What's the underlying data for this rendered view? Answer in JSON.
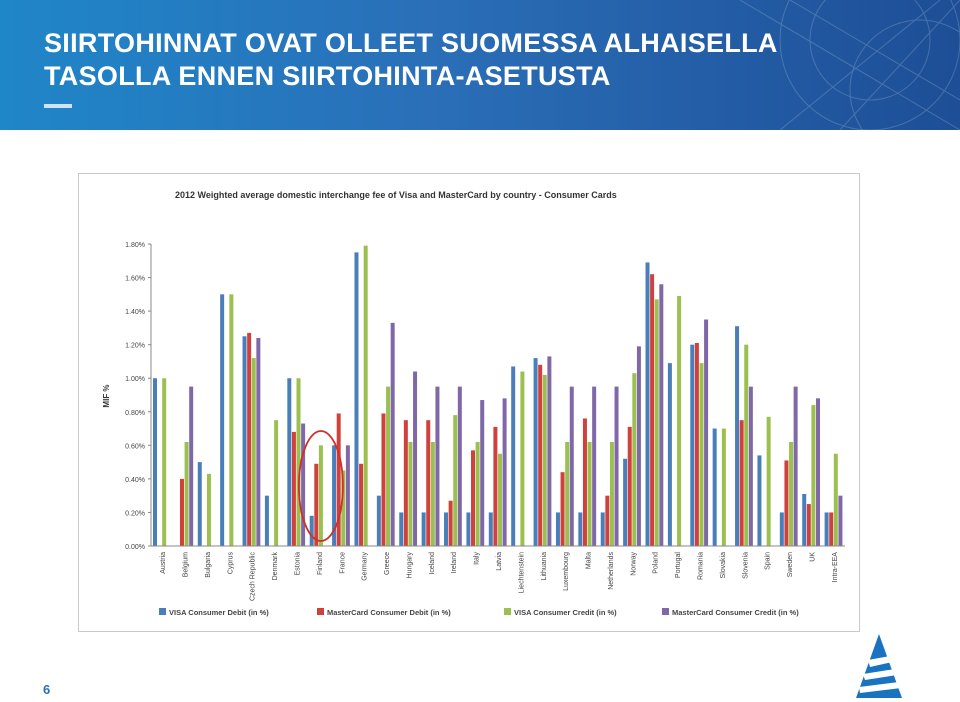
{
  "slide": {
    "title_line1": "SIIRTOHINNAT OVAT OLLEET SUOMESSA ALHAISELLA",
    "title_line2": "TASOLLA ENNEN SIIRTOHINTA-ASETUSTA",
    "page_number": "6",
    "accent_color": "#2a6fb8"
  },
  "chart_data": {
    "type": "bar",
    "title": "2012 Weighted average domestic interchange fee of  Visa and MasterCard by country - Consumer Cards",
    "ylabel": "MIF %",
    "xlabel": "",
    "ylim": [
      0,
      1.8
    ],
    "yticks": [
      "0.00%",
      "0.20%",
      "0.40%",
      "0.60%",
      "0.80%",
      "1.00%",
      "1.20%",
      "1.40%",
      "1.60%",
      "1.80%"
    ],
    "grid": false,
    "legend_position": "bottom",
    "highlight_category": "Finland",
    "categories": [
      "Austria",
      "Belgium",
      "Bulgaria",
      "Cyprus",
      "Czech Republic",
      "Denmark",
      "Estonia",
      "Finland",
      "France",
      "Germany",
      "Greece",
      "Hungary",
      "Iceland",
      "Ireland",
      "Italy",
      "Latvia",
      "Liechtenstein",
      "Lithuania",
      "Luxembourg",
      "Malta",
      "Netherlands",
      "Norway",
      "Poland",
      "Portugal",
      "Romania",
      "Slovakia",
      "Slovenia",
      "Spain",
      "Sweden",
      "UK",
      "Intra-EEA"
    ],
    "series": [
      {
        "name": "VISA Consumer Debit (in %)",
        "color": "#4a7ebb",
        "values": [
          1.0,
          0,
          0.5,
          1.5,
          1.25,
          0.3,
          1.0,
          0.18,
          0.6,
          1.75,
          0.3,
          0.2,
          0.2,
          0.2,
          0.2,
          0.2,
          1.07,
          1.12,
          0.2,
          0.2,
          0.2,
          0.52,
          1.69,
          1.09,
          1.2,
          0.7,
          1.31,
          0.54,
          0.2,
          0.31,
          0.2
        ]
      },
      {
        "name": "MasterCard Consumer Debit (in %)",
        "color": "#d0413c",
        "values": [
          0,
          0.4,
          0,
          0,
          1.27,
          0,
          0.68,
          0.49,
          0.79,
          0.49,
          0.79,
          0.75,
          0.75,
          0.27,
          0.57,
          0.71,
          0,
          1.08,
          0.44,
          0.76,
          0.3,
          0.71,
          1.62,
          0,
          1.21,
          0,
          0.75,
          0,
          0.51,
          0.25,
          0.2
        ]
      },
      {
        "name": "VISA Consumer Credit (in %)",
        "color": "#9bc04f",
        "values": [
          1.0,
          0.62,
          0.43,
          1.5,
          1.12,
          0.75,
          1.0,
          0.6,
          0.45,
          1.79,
          0.95,
          0.62,
          0.62,
          0.78,
          0.62,
          0.55,
          1.04,
          1.02,
          0.62,
          0.62,
          0.62,
          1.03,
          1.47,
          1.49,
          1.09,
          0.7,
          1.2,
          0.77,
          0.62,
          0.84,
          0.55
        ]
      },
      {
        "name": "MasterCard Consumer Credit (in %)",
        "color": "#8068a8",
        "values": [
          0,
          0.95,
          0,
          0,
          1.24,
          0,
          0.73,
          0,
          0.6,
          0,
          1.33,
          1.04,
          0.95,
          0.95,
          0.87,
          0.88,
          0,
          1.13,
          0.95,
          0.95,
          0.95,
          1.19,
          1.56,
          0,
          1.35,
          0,
          0.95,
          0,
          0.95,
          0.88,
          0.3
        ]
      }
    ]
  }
}
